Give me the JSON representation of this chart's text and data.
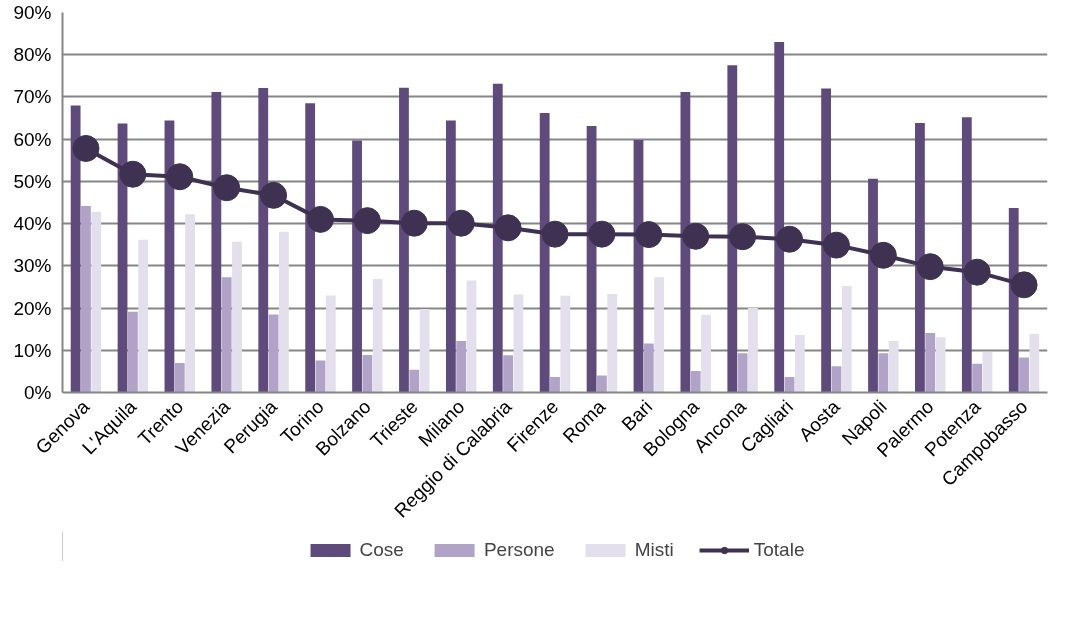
{
  "chart_data": {
    "type": "bar",
    "categories": [
      "Genova",
      "L'Aquila",
      "Trento",
      "Venezia",
      "Perugia",
      "Torino",
      "Bolzano",
      "Trieste",
      "Milano",
      "Reggio di Calabria",
      "Firenze",
      "Roma",
      "Bari",
      "Bologna",
      "Ancona",
      "Cagliari",
      "Aosta",
      "Napoli",
      "Palermo",
      "Potenza",
      "Campobasso"
    ],
    "series": [
      {
        "name": "Cose",
        "color": "#5f4b7b",
        "values": [
          68,
          63.7,
          64.4,
          71.2,
          72.1,
          68.5,
          59.7,
          72.2,
          64.4,
          73.1,
          66.2,
          63.1,
          59.8,
          71.2,
          77.5,
          83,
          72,
          50.6,
          63.8,
          65.2,
          43.7
        ]
      },
      {
        "name": "Persone",
        "color": "#b1a2c8",
        "values": [
          44.2,
          19.1,
          7,
          27.3,
          18.5,
          7.6,
          8.9,
          5.4,
          12.2,
          8.8,
          3.7,
          4,
          11.6,
          5.1,
          9.3,
          3.7,
          6.2,
          9.3,
          14.1,
          6.8,
          8.3
        ]
      },
      {
        "name": "Misti",
        "color": "#e4dfec",
        "values": [
          42.8,
          36.2,
          42.2,
          35.7,
          38.1,
          23,
          26.9,
          19.8,
          26.5,
          23.2,
          22.9,
          23.3,
          27.3,
          18.4,
          20,
          13.6,
          25.2,
          12.2,
          13.1,
          9.6,
          13.9
        ]
      },
      {
        "name": "Totale",
        "type": "line",
        "color": "#3f3152",
        "marker": "circle",
        "values": [
          57.8,
          51.7,
          51.1,
          48.5,
          46.7,
          41,
          40.7,
          40.1,
          40.1,
          39,
          37.5,
          37.5,
          37.4,
          37,
          36.9,
          36.3,
          34.9,
          32.5,
          29.8,
          28.5,
          25.5
        ]
      }
    ],
    "ylim": [
      0,
      90
    ],
    "yticks": [
      {
        "value": 0,
        "label": "0%"
      },
      {
        "value": 10,
        "label": "10%"
      },
      {
        "value": 20,
        "label": "20%"
      },
      {
        "value": 30,
        "label": "30%"
      },
      {
        "value": 40,
        "label": "40%"
      },
      {
        "value": 50,
        "label": "50%"
      },
      {
        "value": 60,
        "label": "60%"
      },
      {
        "value": 70,
        "label": "70%"
      },
      {
        "value": 80,
        "label": "80%"
      },
      {
        "value": 90,
        "label": "90%"
      }
    ],
    "grid": "y",
    "legend": "bottom"
  }
}
